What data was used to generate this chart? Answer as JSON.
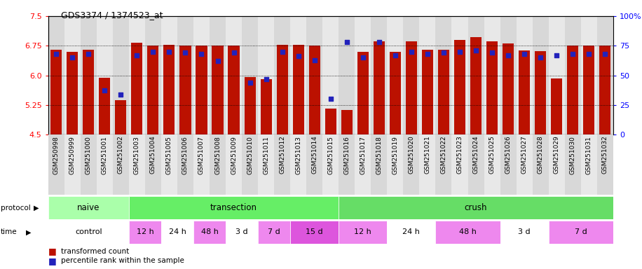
{
  "title": "GDS3374 / 1374523_at",
  "samples": [
    "GSM250998",
    "GSM250999",
    "GSM251000",
    "GSM251001",
    "GSM251002",
    "GSM251003",
    "GSM251004",
    "GSM251005",
    "GSM251006",
    "GSM251007",
    "GSM251008",
    "GSM251009",
    "GSM251010",
    "GSM251011",
    "GSM251012",
    "GSM251013",
    "GSM251014",
    "GSM251015",
    "GSM251016",
    "GSM251017",
    "GSM251018",
    "GSM251019",
    "GSM251020",
    "GSM251021",
    "GSM251022",
    "GSM251023",
    "GSM251024",
    "GSM251025",
    "GSM251026",
    "GSM251027",
    "GSM251028",
    "GSM251029",
    "GSM251030",
    "GSM251031",
    "GSM251032"
  ],
  "bar_values": [
    6.64,
    6.6,
    6.64,
    5.93,
    5.37,
    6.82,
    6.76,
    6.77,
    6.76,
    6.76,
    6.76,
    6.76,
    5.95,
    5.9,
    6.77,
    6.78,
    6.76,
    5.16,
    5.12,
    6.6,
    6.86,
    6.6,
    6.86,
    6.64,
    6.65,
    6.9,
    6.96,
    6.86,
    6.8,
    6.63,
    6.62,
    5.92,
    6.76,
    6.76,
    6.76
  ],
  "percentile_values": [
    68,
    65,
    68,
    37,
    34,
    67,
    70,
    70,
    69,
    68,
    62,
    69,
    44,
    47,
    70,
    66,
    63,
    30,
    78,
    65,
    78,
    67,
    70,
    68,
    69,
    70,
    71,
    69,
    67,
    68,
    65,
    67,
    68,
    68,
    68
  ],
  "ylim_left": [
    4.5,
    7.5
  ],
  "ylim_right": [
    0,
    100
  ],
  "yticks_left": [
    4.5,
    5.25,
    6.0,
    6.75,
    7.5
  ],
  "yticks_right": [
    0,
    25,
    50,
    75,
    100
  ],
  "bar_color": "#bb1100",
  "dot_color": "#2222bb",
  "background_color": "#ffffff",
  "label_transformed": "transformed count",
  "label_percentile": "percentile rank within the sample",
  "protocol_groups": [
    {
      "label": "naive",
      "start": 0,
      "end": 5,
      "color": "#aaffaa"
    },
    {
      "label": "transection",
      "start": 5,
      "end": 18,
      "color": "#66ee66"
    },
    {
      "label": "crush",
      "start": 18,
      "end": 35,
      "color": "#66dd66"
    }
  ],
  "time_groups": [
    {
      "label": "control",
      "start": 0,
      "end": 5,
      "color": "#ffffff"
    },
    {
      "label": "12 h",
      "start": 5,
      "end": 7,
      "color": "#ee88ee"
    },
    {
      "label": "24 h",
      "start": 7,
      "end": 9,
      "color": "#ffffff"
    },
    {
      "label": "48 h",
      "start": 9,
      "end": 11,
      "color": "#ee88ee"
    },
    {
      "label": "3 d",
      "start": 11,
      "end": 13,
      "color": "#ffffff"
    },
    {
      "label": "7 d",
      "start": 13,
      "end": 15,
      "color": "#ee88ee"
    },
    {
      "label": "15 d",
      "start": 15,
      "end": 18,
      "color": "#dd55dd"
    },
    {
      "label": "12 h",
      "start": 18,
      "end": 21,
      "color": "#ee88ee"
    },
    {
      "label": "24 h",
      "start": 21,
      "end": 24,
      "color": "#ffffff"
    },
    {
      "label": "48 h",
      "start": 24,
      "end": 28,
      "color": "#ee88ee"
    },
    {
      "label": "3 d",
      "start": 28,
      "end": 31,
      "color": "#ffffff"
    },
    {
      "label": "7 d",
      "start": 31,
      "end": 35,
      "color": "#ee88ee"
    }
  ]
}
